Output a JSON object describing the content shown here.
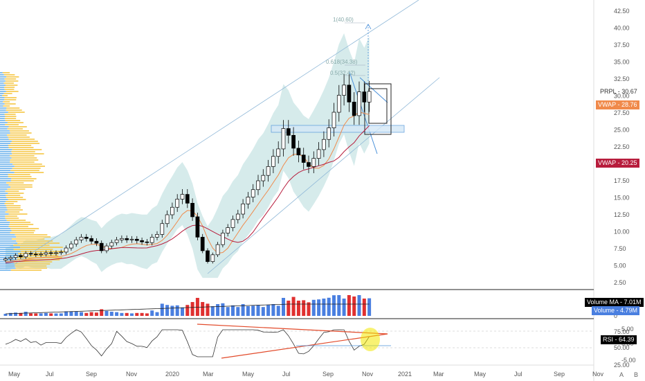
{
  "symbol": "PRPL",
  "price_axis": {
    "labels": [
      "42.50",
      "40.00",
      "37.50",
      "35.00",
      "32.50",
      "30.00",
      "27.50",
      "25.00",
      "22.50",
      "20.00",
      "17.50",
      "15.00",
      "12.50",
      "10.00",
      "7.50",
      "5.00",
      "2.50"
    ],
    "values": [
      42.5,
      40,
      37.5,
      35,
      32.5,
      30,
      27.5,
      25,
      22.5,
      20,
      17.5,
      15,
      12.5,
      10,
      7.5,
      5,
      2.5
    ]
  },
  "time_axis": [
    "May",
    "Jul",
    "Sep",
    "Nov",
    "2020",
    "Mar",
    "May",
    "Jul",
    "Sep",
    "Nov",
    "2021",
    "Mar",
    "May",
    "Jul",
    "Sep",
    "Nov"
  ],
  "fib_labels": {
    "top": "1(40.60)",
    "mid": "0.618(34.38)",
    "low": "0.5(32.42)"
  },
  "tags": {
    "last_label": "PRPL",
    "last_value": "30.67",
    "vwap1_label": "VWAP",
    "vwap1_value": "28.76",
    "vwap2_label": "VWAP",
    "vwap2_value": "20.25",
    "volume_ma_label": "Volume MA",
    "volume_ma_value": "7.01M",
    "volume_label": "Volume",
    "volume_value": "4.79M",
    "rsi_label": "RSI",
    "rsi_value": "64.39"
  },
  "volume_axis": [
    "0"
  ],
  "rsi_axis": [
    "75.00",
    "50.00",
    "25.00"
  ],
  "rsi_right_axis": [
    "5.00",
    "0.00",
    "-5.00"
  ],
  "corner": {
    "a": "A",
    "b": "B"
  },
  "colors": {
    "up": "#ffffff",
    "down": "#000000",
    "vol_up": "#4a7fe0",
    "vol_down": "#e03030",
    "band": "#cfe7e7",
    "vwap_orange": "#f08a4b",
    "vwap_red": "#b71c3c",
    "profile_blue": "#5ba8e8",
    "profile_yellow": "#f5c542",
    "rsi_line": "#333333",
    "trend_red": "#e24a2a",
    "highlight": "#f2e700"
  },
  "chart_data": {
    "type": "candlestick",
    "weekly_close_approx": [
      6.0,
      6.2,
      6.5,
      6.3,
      6.8,
      6.7,
      6.6,
      6.7,
      6.9,
      6.8,
      6.9,
      7.0,
      7.6,
      8.2,
      8.8,
      9.2,
      9.0,
      8.6,
      8.3,
      7.2,
      7.9,
      8.4,
      8.8,
      9.0,
      8.8,
      8.9,
      8.7,
      8.5,
      8.4,
      9.2,
      9.6,
      11.2,
      12.5,
      13.6,
      14.8,
      15.5,
      14.2,
      12.2,
      9.2,
      7.2,
      5.6,
      6.6,
      8.1,
      9.8,
      10.6,
      11.8,
      12.6,
      14.1,
      15.1,
      16.2,
      17.5,
      18.3,
      19.6,
      21.1,
      22.2,
      25.2,
      24.2,
      22.3,
      21.3,
      20.2,
      19.6,
      20.8,
      22.1,
      23.6,
      25.3,
      27.6,
      30.1,
      31.6,
      29.1,
      27.1,
      30.6,
      29.1,
      30.67
    ],
    "last_close": 30.67,
    "vwap_levels": [
      28.76,
      20.25
    ],
    "volume": {
      "ma": "7.01M",
      "last": "4.79M"
    },
    "rsi_last": 64.39
  }
}
